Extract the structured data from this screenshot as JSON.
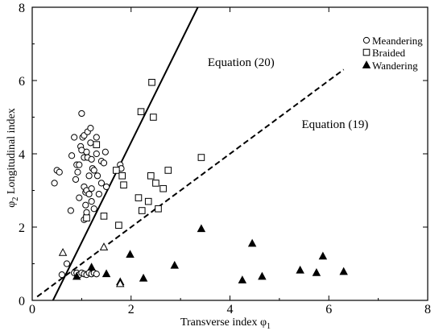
{
  "chart_data": {
    "type": "scatter",
    "xlabel": "Transverse index φ",
    "xlabel_sub": "1",
    "ylabel": "φ",
    "ylabel_sub": "2",
    "ylabel_rest": " Longitudinal index",
    "xlim": [
      0,
      8
    ],
    "ylim": [
      0,
      8
    ],
    "xticks": [
      "0",
      "2",
      "4",
      "6",
      "8"
    ],
    "yticks": [
      "0",
      "2",
      "4",
      "6",
      "8"
    ],
    "grid": false,
    "legend_position": "top-right",
    "series": [
      {
        "name": "Meandering",
        "marker": "circle",
        "points": [
          [
            0.45,
            3.2
          ],
          [
            0.5,
            3.55
          ],
          [
            0.55,
            3.5
          ],
          [
            0.7,
            1.0
          ],
          [
            0.6,
            0.7
          ],
          [
            0.78,
            2.45
          ],
          [
            0.8,
            3.95
          ],
          [
            0.85,
            4.45
          ],
          [
            0.88,
            3.3
          ],
          [
            0.9,
            3.7
          ],
          [
            0.92,
            3.5
          ],
          [
            0.95,
            2.8
          ],
          [
            0.95,
            3.7
          ],
          [
            0.98,
            4.2
          ],
          [
            1.0,
            5.1
          ],
          [
            1.0,
            4.1
          ],
          [
            1.02,
            4.45
          ],
          [
            1.05,
            4.5
          ],
          [
            1.05,
            3.1
          ],
          [
            1.05,
            3.9
          ],
          [
            1.08,
            2.6
          ],
          [
            1.08,
            2.95
          ],
          [
            1.1,
            4.05
          ],
          [
            1.1,
            3.0
          ],
          [
            1.12,
            3.9
          ],
          [
            1.12,
            4.6
          ],
          [
            1.15,
            2.9
          ],
          [
            1.15,
            3.4
          ],
          [
            1.18,
            4.3
          ],
          [
            1.18,
            4.7
          ],
          [
            1.2,
            3.85
          ],
          [
            1.2,
            2.7
          ],
          [
            1.2,
            3.05
          ],
          [
            1.22,
            3.6
          ],
          [
            1.25,
            2.5
          ],
          [
            1.25,
            3.55
          ],
          [
            1.3,
            4.0
          ],
          [
            1.3,
            4.45
          ],
          [
            1.32,
            3.4
          ],
          [
            1.35,
            2.9
          ],
          [
            1.4,
            3.2
          ],
          [
            1.4,
            3.8
          ],
          [
            1.45,
            3.75
          ],
          [
            1.48,
            4.05
          ],
          [
            1.5,
            3.1
          ],
          [
            1.78,
            3.7
          ],
          [
            1.8,
            3.6
          ],
          [
            0.85,
            0.75
          ],
          [
            0.9,
            0.75
          ],
          [
            0.95,
            0.7
          ],
          [
            1.0,
            0.75
          ],
          [
            1.05,
            0.72
          ],
          [
            1.1,
            0.7
          ],
          [
            1.15,
            0.75
          ],
          [
            1.2,
            0.72
          ],
          [
            1.25,
            0.75
          ],
          [
            1.3,
            0.72
          ],
          [
            1.05,
            2.2
          ],
          [
            1.1,
            2.4
          ]
        ]
      },
      {
        "name": "Braided",
        "marker": "square",
        "points": [
          [
            1.1,
            2.25
          ],
          [
            1.3,
            4.25
          ],
          [
            1.45,
            2.3
          ],
          [
            1.7,
            3.55
          ],
          [
            1.75,
            2.05
          ],
          [
            1.82,
            3.4
          ],
          [
            1.85,
            3.15
          ],
          [
            2.2,
            5.15
          ],
          [
            2.15,
            2.8
          ],
          [
            2.22,
            2.45
          ],
          [
            2.35,
            2.7
          ],
          [
            2.4,
            3.4
          ],
          [
            2.42,
            5.95
          ],
          [
            2.45,
            5.0
          ],
          [
            2.5,
            3.2
          ],
          [
            2.55,
            2.5
          ],
          [
            2.65,
            3.05
          ],
          [
            2.75,
            3.55
          ],
          [
            3.42,
            3.9
          ]
        ]
      },
      {
        "name": "Wandering",
        "marker": "filled-triangle",
        "points": [
          [
            0.9,
            0.65
          ],
          [
            1.2,
            0.9
          ],
          [
            1.5,
            0.72
          ],
          [
            1.78,
            0.5
          ],
          [
            1.98,
            1.25
          ],
          [
            2.25,
            0.6
          ],
          [
            2.88,
            0.95
          ],
          [
            3.42,
            1.95
          ],
          [
            4.25,
            0.55
          ],
          [
            4.45,
            1.55
          ],
          [
            4.65,
            0.65
          ],
          [
            5.42,
            0.82
          ],
          [
            5.75,
            0.75
          ],
          [
            5.88,
            1.2
          ],
          [
            6.3,
            0.78
          ]
        ]
      },
      {
        "name": "",
        "marker": "open-triangle",
        "points": [
          [
            0.62,
            1.3
          ],
          [
            1.45,
            1.45
          ],
          [
            1.78,
            0.45
          ]
        ]
      }
    ],
    "lines": [
      {
        "label": "Equation (20)",
        "style": "solid",
        "points": [
          [
            0.42,
            0
          ],
          [
            3.35,
            8.0
          ]
        ]
      },
      {
        "label": "Equation (19)",
        "style": "dashed",
        "points": [
          [
            0.1,
            0.1
          ],
          [
            6.3,
            6.3
          ]
        ]
      }
    ],
    "annotations": [
      {
        "text": "Equation (20)",
        "x": 3.55,
        "y": 6.4
      },
      {
        "text": "Equation (19)",
        "x": 5.45,
        "y": 4.7
      }
    ]
  }
}
